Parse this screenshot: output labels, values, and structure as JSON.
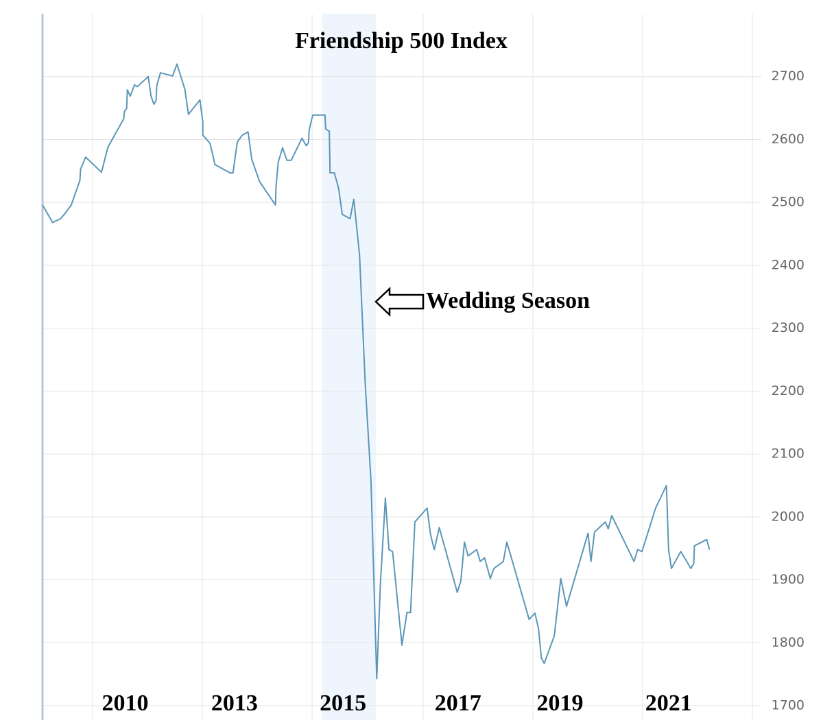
{
  "chart_data": {
    "type": "line",
    "title": "Friendship 500 Index",
    "annotation": "Wedding Season",
    "xlim": [
      0,
      100
    ],
    "xticks": [
      {
        "value": 11.5,
        "label": "2010"
      },
      {
        "value": 26.7,
        "label": "2013"
      },
      {
        "value": 41.8,
        "label": "2015"
      },
      {
        "value": 57.8,
        "label": "2017"
      },
      {
        "value": 72,
        "label": "2019"
      },
      {
        "value": 87.1,
        "label": "2021"
      }
    ],
    "ylim": [
      1700,
      2800
    ],
    "yticks": [
      1700,
      1800,
      1900,
      2000,
      2100,
      2200,
      2300,
      2400,
      2500,
      2600,
      2700
    ],
    "grid": true,
    "shaded_region": [
      38.9,
      46.4
    ],
    "shaded_color": "#eef5fc",
    "series": [
      {
        "name": "Friendship 500 Index",
        "color": "#5b96b8",
        "x": [
          0,
          1.4,
          2.5,
          3.1,
          4.0,
          5.2,
          5.3,
          6.0,
          8.2,
          9.1,
          11.3,
          11.4,
          11.7,
          11.8,
          12.2,
          12.8,
          13.2,
          14.7,
          15.1,
          15.5,
          15.8,
          15.9,
          16.4,
          18.1,
          18.7,
          19.8,
          20.3,
          21.9,
          22.3,
          22.3,
          23.3,
          24.0,
          26.1,
          26.5,
          27.1,
          27.8,
          28.6,
          29.1,
          30.2,
          32.4,
          32.5,
          32.8,
          33.4,
          34.0,
          34.6,
          36.1,
          36.7,
          37.0,
          37.1,
          37.6,
          39.3,
          39.4,
          39.9,
          40.0,
          40.6,
          41.2,
          41.7,
          42.8,
          43.3,
          44.1,
          44.9,
          45.7,
          46.5,
          47.0,
          47.7,
          48.2,
          48.7,
          50.0,
          50.7,
          51.2,
          51.8,
          53.5,
          54.0,
          54.5,
          55.2,
          57.7,
          58.2,
          58.7,
          59.2,
          60.4,
          60.9,
          61.5,
          62.3,
          62.8,
          64.1,
          64.6,
          67.7,
          68.5,
          69.0,
          69.4,
          69.8,
          71.2,
          72.1,
          72.9,
          75.9,
          76.3,
          76.8,
          78.3,
          78.7,
          79.2,
          82.3,
          82.8,
          83.4,
          85.3,
          86.8,
          87.1,
          87.5,
          88.8,
          90.2,
          90.6,
          90.7,
          92.4,
          92.8
        ],
        "values": [
          2496,
          2468,
          2474,
          2482,
          2496,
          2535,
          2553,
          2572,
          2548,
          2588,
          2633,
          2645,
          2649,
          2679,
          2669,
          2687,
          2684,
          2700,
          2669,
          2656,
          2662,
          2686,
          2706,
          2701,
          2720,
          2680,
          2640,
          2663,
          2628,
          2607,
          2594,
          2560,
          2547,
          2547,
          2596,
          2607,
          2612,
          2569,
          2533,
          2496,
          2527,
          2564,
          2587,
          2567,
          2567,
          2602,
          2590,
          2595,
          2615,
          2639,
          2639,
          2617,
          2613,
          2547,
          2547,
          2522,
          2481,
          2474,
          2505,
          2417,
          2210,
          2057,
          1743,
          1893,
          2030,
          1948,
          1945,
          1796,
          1848,
          1848,
          1992,
          2014,
          1971,
          1948,
          1983,
          1880,
          1898,
          1960,
          1938,
          1948,
          1929,
          1935,
          1902,
          1918,
          1929,
          1960,
          1837,
          1847,
          1823,
          1776,
          1767,
          1811,
          1902,
          1858,
          1974,
          1929,
          1976,
          1992,
          1981,
          2002,
          1929,
          1948,
          1945,
          2014,
          2050,
          1948,
          1918,
          1945,
          1918,
          1926,
          1954,
          1964,
          1948
        ]
      }
    ]
  }
}
